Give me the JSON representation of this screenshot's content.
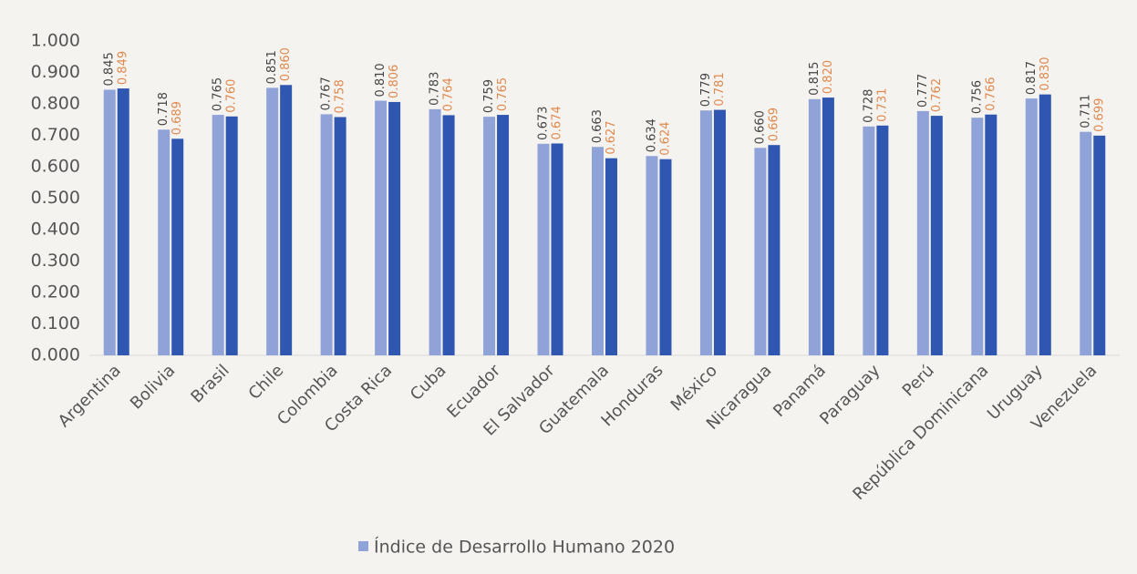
{
  "chart_data": {
    "type": "bar",
    "categories": [
      "Argentina",
      "Bolivia",
      "Brasil",
      "Chile",
      "Colombia",
      "Costa Rica",
      "Cuba",
      "Ecuador",
      "El Salvador",
      "Guatemala",
      "Honduras",
      "México",
      "Nicaragua",
      "Panamá",
      "Paraguay",
      "Perú",
      "República Dominicana",
      "Uruguay",
      "Venezuela"
    ],
    "series": [
      {
        "name": "Índice de Desarrollo Humano 2020",
        "color": "#8fa3d9",
        "label_color": "#444444",
        "values": [
          0.845,
          0.718,
          0.765,
          0.851,
          0.767,
          0.81,
          0.783,
          0.759,
          0.673,
          0.663,
          0.634,
          0.779,
          0.66,
          0.815,
          0.728,
          0.777,
          0.756,
          0.817,
          0.711
        ],
        "value_labels": [
          "0.845",
          "0.718",
          "0.765",
          "0.851",
          "0.767",
          "0.810",
          "0.783",
          "0.759",
          "0.673",
          "0.663",
          "0.634",
          "0.779",
          "0.660",
          "0.815",
          "0.728",
          "0.777",
          "0.756",
          "0.817",
          "0.711"
        ]
      },
      {
        "color": "#2f56b0",
        "label_color": "#e0894f",
        "values": [
          0.849,
          0.689,
          0.76,
          0.86,
          0.758,
          0.806,
          0.764,
          0.765,
          0.674,
          0.627,
          0.624,
          0.781,
          0.669,
          0.82,
          0.731,
          0.762,
          0.766,
          0.83,
          0.699
        ],
        "value_labels": [
          "0.849",
          "0.689",
          "0.760",
          "0.860",
          "0.758",
          "0.806",
          "0.764",
          "0.765",
          "0.674",
          "0.627",
          "0.624",
          "0.781",
          "0.669",
          "0.820",
          "0.731",
          "0.762",
          "0.766",
          "0.830",
          "0.699"
        ]
      }
    ],
    "ylim": [
      0,
      1
    ],
    "yticks": [
      {
        "value": 0,
        "label": "0.000"
      },
      {
        "value": 0.1,
        "label": "0.100"
      },
      {
        "value": 0.2,
        "label": "0.200"
      },
      {
        "value": 0.3,
        "label": "0.300"
      },
      {
        "value": 0.4,
        "label": "0.400"
      },
      {
        "value": 0.5,
        "label": "0.500"
      },
      {
        "value": 0.6,
        "label": "0.600"
      },
      {
        "value": 0.7,
        "label": "0.700"
      },
      {
        "value": 0.8,
        "label": "0.800"
      },
      {
        "value": 0.9,
        "label": "0.900"
      },
      {
        "value": 1,
        "label": "1.000"
      }
    ],
    "grid": false
  }
}
